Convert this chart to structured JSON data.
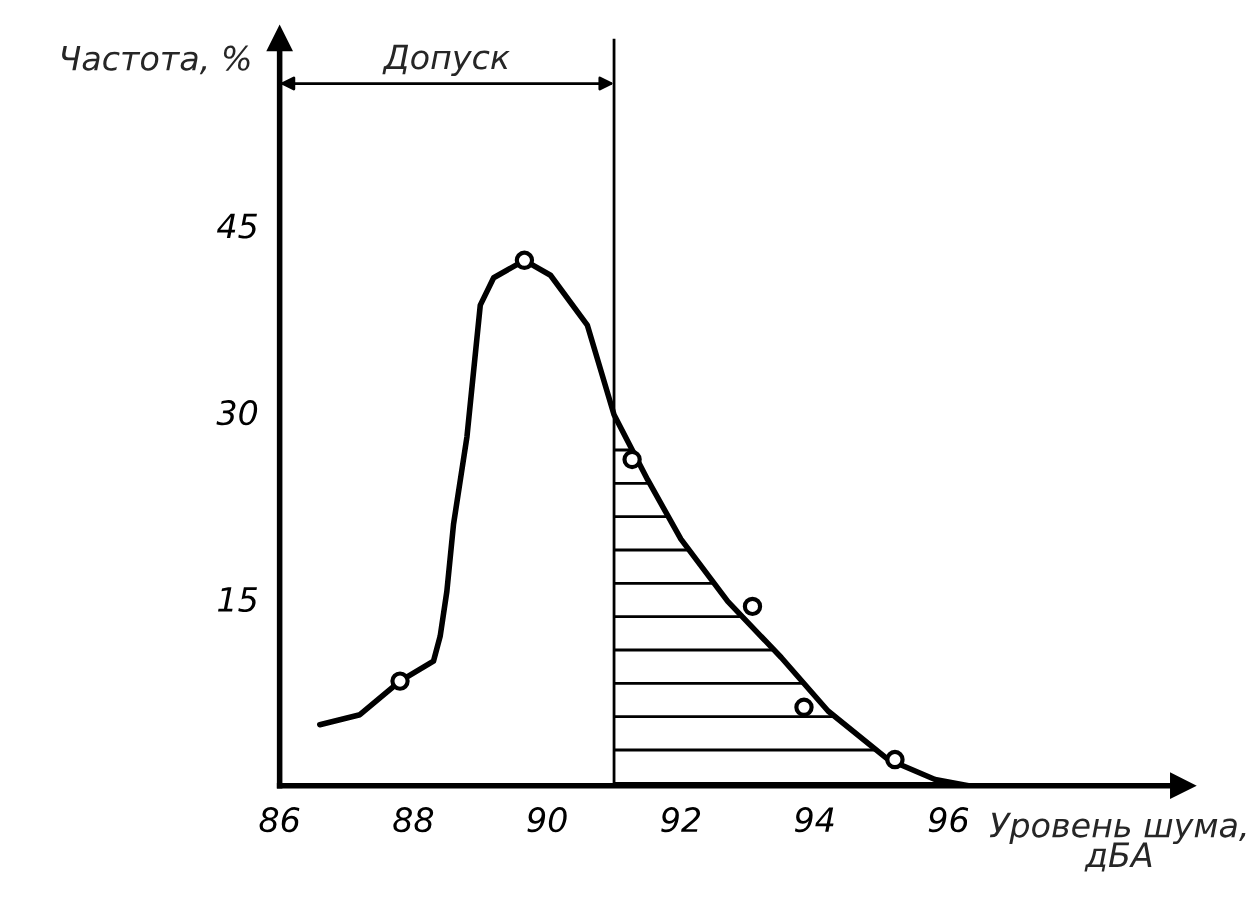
{
  "chart_data": {
    "type": "line",
    "xlabel": "Уровень шума,\nдБА",
    "ylabel": "Частота, %",
    "xlim": [
      86,
      99.5
    ],
    "ylim": [
      0,
      60
    ],
    "xticks": [
      86,
      88,
      90,
      92,
      94,
      96
    ],
    "yticks": [
      15,
      30,
      45
    ],
    "grid": false,
    "line_style": "solid",
    "series": [
      {
        "color": "#000000",
        "marker": "none",
        "x": [
          86.6,
          87.2,
          87.8,
          88.3,
          88.4,
          88.5,
          88.6,
          88.8,
          89.0,
          89.2,
          89.66,
          90.05,
          90.6,
          91.0,
          91.5,
          92.0,
          92.7,
          93.5,
          94.2,
          95.1,
          95.8,
          96.3
        ],
        "values": [
          4.9,
          5.7,
          8.4,
          10,
          12,
          15.6,
          21,
          28,
          38.6,
          40.8,
          42.2,
          41,
          37,
          29.8,
          24.6,
          19.8,
          14.8,
          10.3,
          6,
          2.1,
          0.5,
          0
        ]
      },
      {
        "type": "scatter",
        "color": "#000000",
        "marker": "circle",
        "x": [
          87.8,
          89.66,
          91.27,
          93.07,
          93.84,
          95.2
        ],
        "values": [
          8.4,
          42.2,
          26.2,
          14.4,
          6.3,
          2.1
        ]
      },
      {
        "type": "area",
        "color": "#000000",
        "x": [
          91.0,
          91.5,
          92.0,
          92.7,
          93.5,
          94.2,
          95.1,
          95.8,
          96.3
        ],
        "values": [
          29.8,
          24.6,
          19.8,
          14.8,
          10.3,
          6,
          2.1,
          0.5,
          0
        ]
      }
    ],
    "ref_lines": [
      {
        "axis": "x",
        "value": 91,
        "label": null,
        "color": "#000000",
        "line_style": "solid"
      }
    ],
    "annotations": [
      "Допуск"
    ]
  }
}
